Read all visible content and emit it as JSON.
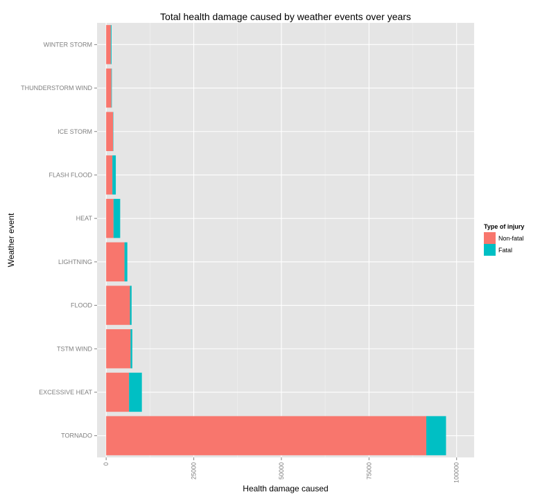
{
  "chart_data": {
    "type": "bar",
    "orientation": "horizontal",
    "stacked": true,
    "title": "Total health damage caused by weather events over years",
    "xlabel": "Health damage caused",
    "ylabel": "Weather event",
    "xlim": [
      -2600,
      105000
    ],
    "xticks": [
      "0",
      "25000",
      "50000",
      "75000",
      "100000"
    ],
    "xtick_values": [
      0,
      25000,
      50000,
      75000,
      100000
    ],
    "grid": true,
    "categories": [
      "TORNADO",
      "EXCESSIVE HEAT",
      "TSTM WIND",
      "FLOOD",
      "LIGHTNING",
      "HEAT",
      "FLASH FLOOD",
      "ICE STORM",
      "THUNDERSTORM WIND",
      "WINTER STORM"
    ],
    "series": [
      {
        "name": "Non-fatal",
        "color": "#F8766D",
        "values": [
          91346,
          6525,
          6957,
          6789,
          5230,
          2100,
          1777,
          1975,
          1488,
          1321
        ]
      },
      {
        "name": "Fatal",
        "color": "#00BFC4",
        "values": [
          5633,
          3665,
          504,
          470,
          816,
          1903,
          978,
          89,
          133,
          206
        ]
      }
    ],
    "legend": {
      "title": "Type of injury",
      "position": "right",
      "entries": [
        "Non-fatal",
        "Fatal"
      ]
    },
    "colors": {
      "panel_background": "#E5E5E5",
      "grid_major": "#FFFFFF",
      "grid_minor": "#F2F2F2"
    }
  }
}
